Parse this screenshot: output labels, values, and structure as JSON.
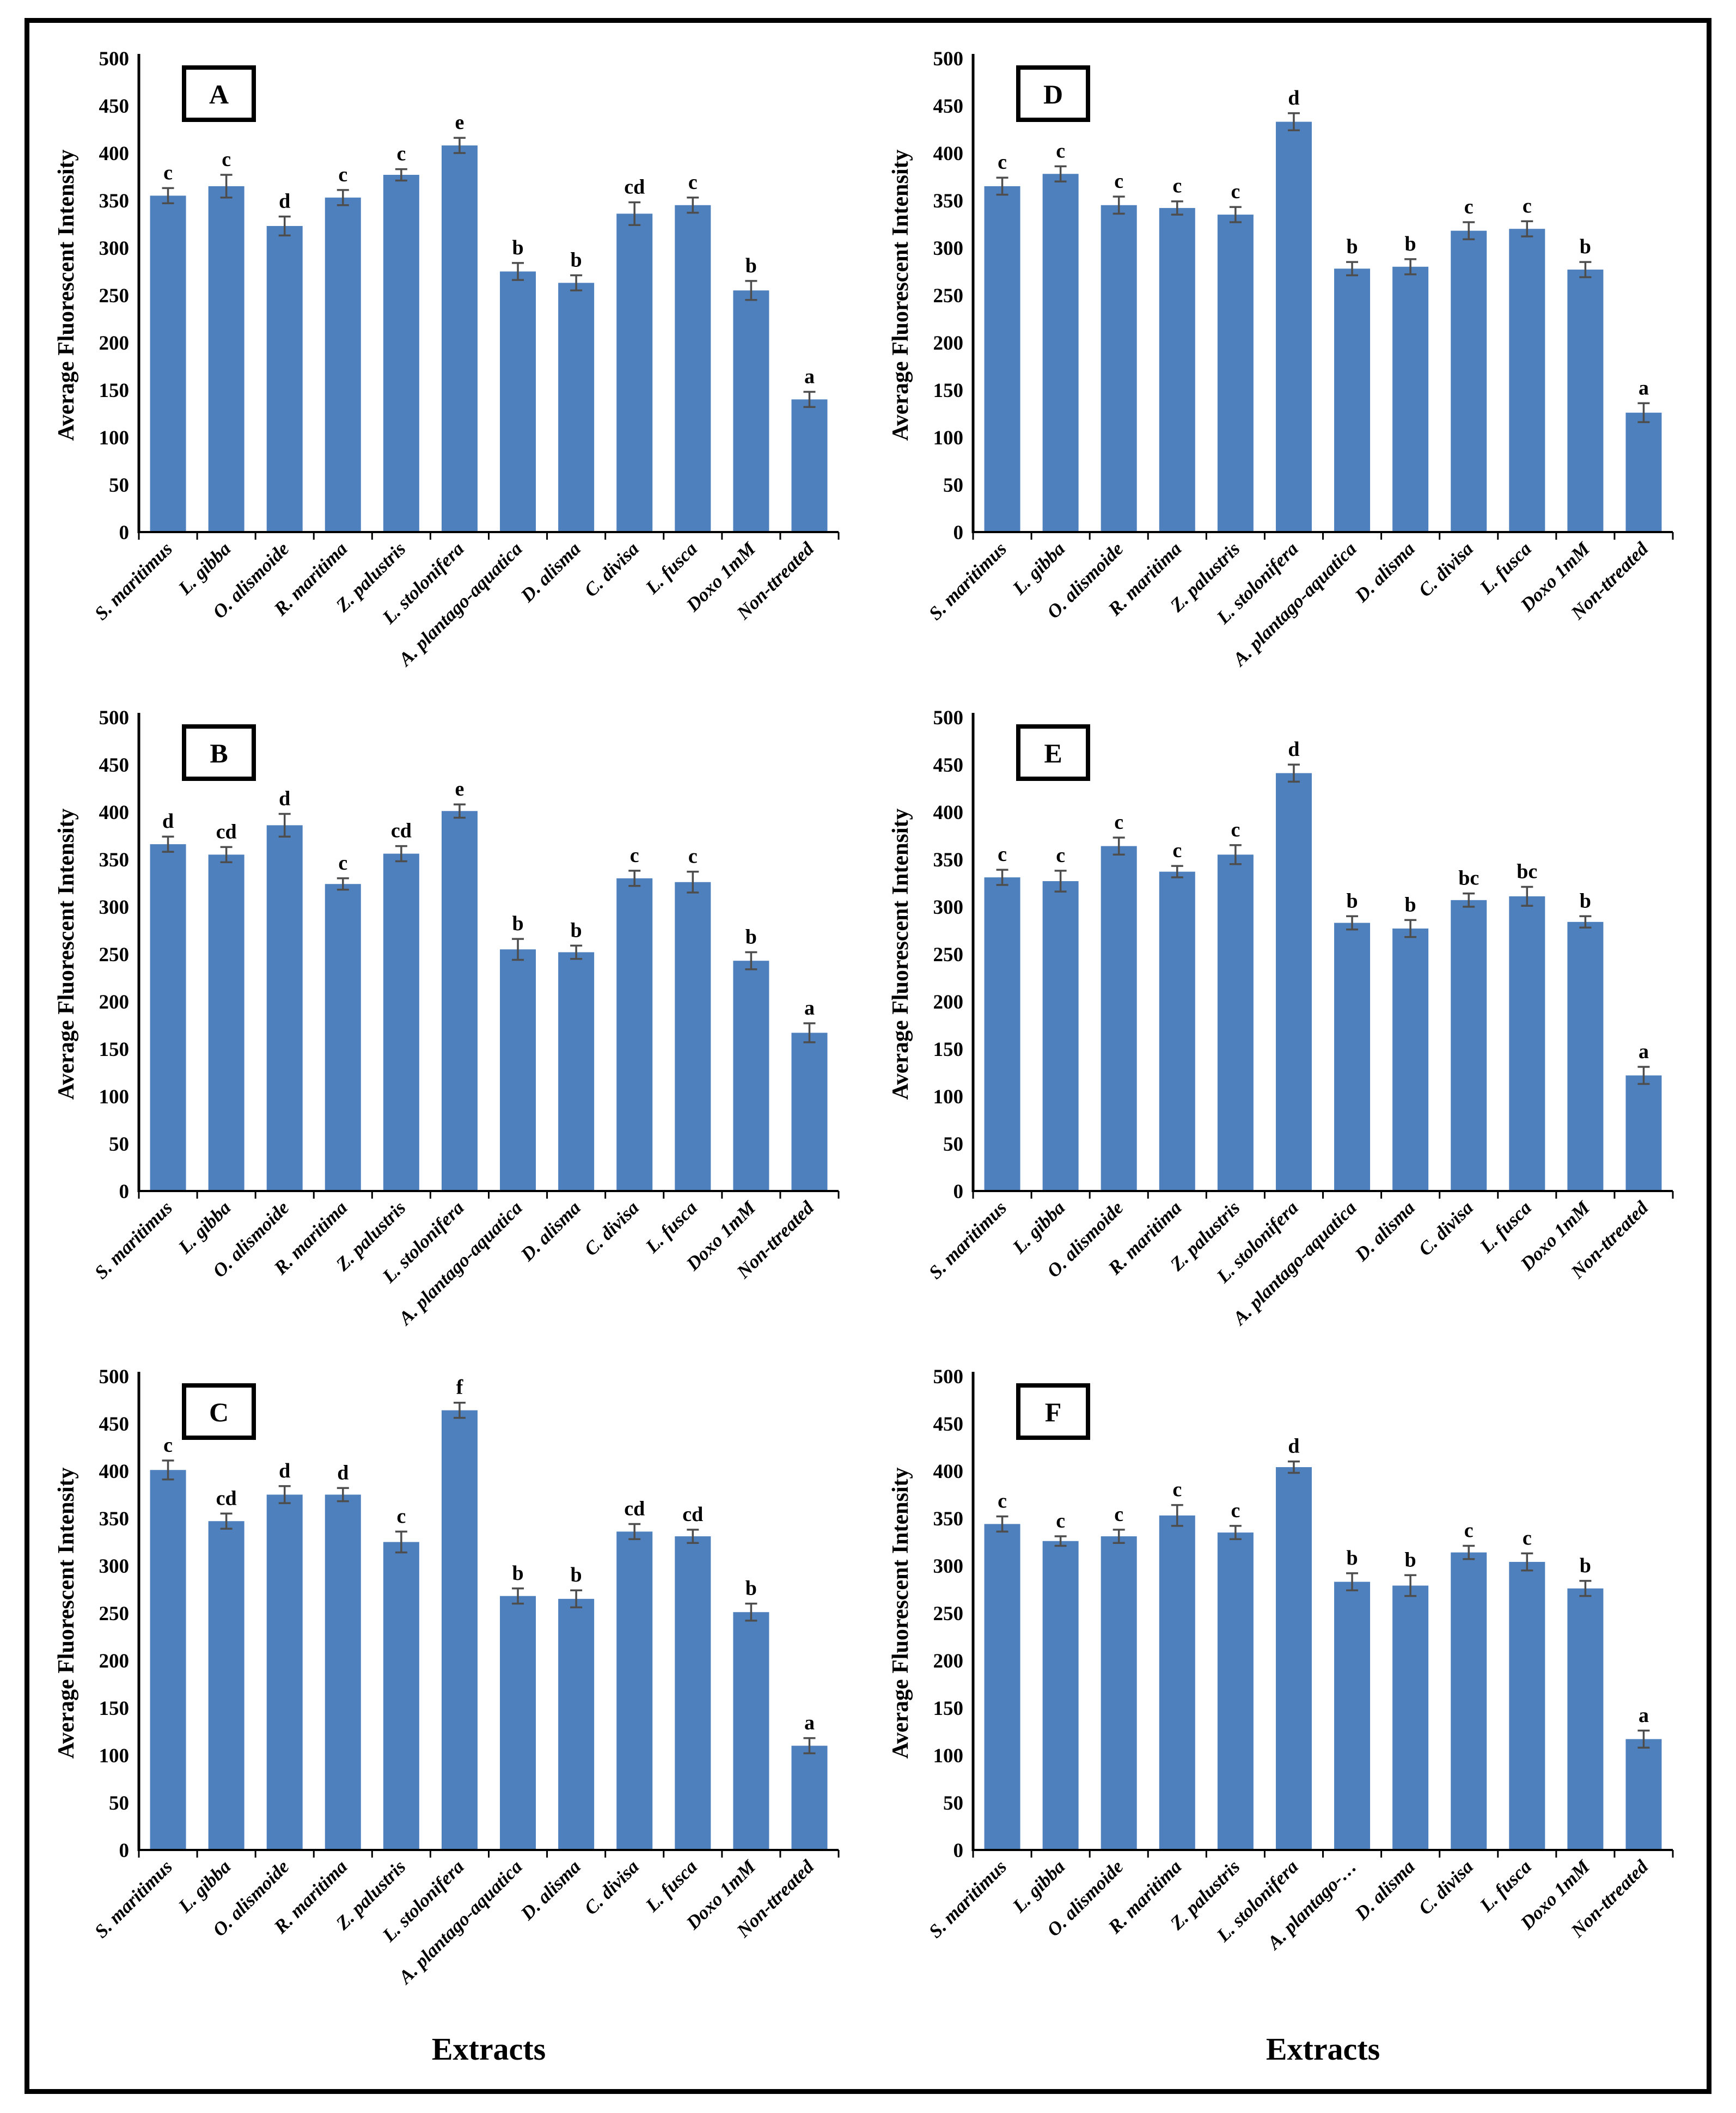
{
  "chart_data": {
    "type": "bar",
    "title": "",
    "ylabel": "Average Fluorescent Intensity",
    "xlabel": "Extracts",
    "ylim": [
      0,
      500
    ],
    "ytick_step": 50,
    "grid": "off",
    "legend": "none",
    "bar_color": "#4e80bd",
    "error_color": "#4d4d4d",
    "axis_color": "#000000",
    "categories": [
      "S. maritimus",
      "L. gibba",
      "O. alismoide",
      "R. maritima",
      "Z. palustris",
      "L. stolonifera",
      "A. plantago-aquatica",
      "D. alisma",
      "C. divisa",
      "L. fusca",
      "Doxo 1mM",
      "Non-ttreated"
    ],
    "grid_order": [
      "A",
      "D",
      "B",
      "E",
      "C",
      "F"
    ],
    "panels": [
      {
        "label": "A",
        "values": [
          355,
          365,
          323,
          353,
          377,
          408,
          275,
          263,
          336,
          345,
          255,
          140
        ],
        "errors": [
          8,
          12,
          10,
          8,
          6,
          8,
          9,
          8,
          12,
          8,
          10,
          8
        ],
        "sig_letters": [
          "c",
          "c",
          "d",
          "c",
          "c",
          "e",
          "b",
          "b",
          "cd",
          "c",
          "b",
          "a"
        ],
        "show_xlabel": false
      },
      {
        "label": "B",
        "values": [
          366,
          355,
          386,
          324,
          356,
          401,
          255,
          252,
          330,
          326,
          243,
          167
        ],
        "errors": [
          8,
          8,
          12,
          6,
          8,
          7,
          11,
          7,
          8,
          11,
          9,
          10
        ],
        "sig_letters": [
          "d",
          "cd",
          "d",
          "c",
          "cd",
          "e",
          "b",
          "b",
          "c",
          "c",
          "b",
          "a"
        ],
        "show_xlabel": false
      },
      {
        "label": "C",
        "values": [
          401,
          347,
          375,
          375,
          325,
          464,
          268,
          265,
          336,
          331,
          251,
          110
        ],
        "errors": [
          10,
          8,
          9,
          7,
          11,
          8,
          8,
          9,
          8,
          7,
          9,
          8
        ],
        "sig_letters": [
          "c",
          "cd",
          "d",
          "d",
          "c",
          "f",
          "b",
          "b",
          "cd",
          "cd",
          "b",
          "a"
        ],
        "show_xlabel": true
      },
      {
        "label": "D",
        "values": [
          365,
          378,
          345,
          342,
          335,
          433,
          278,
          280,
          318,
          320,
          277,
          126
        ],
        "errors": [
          9,
          8,
          9,
          7,
          8,
          9,
          7,
          8,
          9,
          8,
          8,
          10
        ],
        "sig_letters": [
          "c",
          "c",
          "c",
          "c",
          "c",
          "d",
          "b",
          "b",
          "c",
          "c",
          "b",
          "a"
        ],
        "show_xlabel": false
      },
      {
        "label": "E",
        "values": [
          331,
          327,
          364,
          337,
          355,
          441,
          283,
          277,
          307,
          311,
          284,
          122
        ],
        "errors": [
          8,
          11,
          9,
          6,
          10,
          9,
          7,
          9,
          7,
          10,
          6,
          9
        ],
        "sig_letters": [
          "c",
          "c",
          "c",
          "c",
          "c",
          "d",
          "b",
          "b",
          "bc",
          "bc",
          "b",
          "a"
        ],
        "show_xlabel": false
      },
      {
        "label": "F",
        "values": [
          344,
          326,
          331,
          353,
          335,
          404,
          283,
          279,
          314,
          304,
          276,
          117
        ],
        "errors": [
          8,
          5,
          7,
          11,
          7,
          6,
          9,
          11,
          7,
          9,
          8,
          9
        ],
        "sig_letters": [
          "c",
          "c",
          "c",
          "c",
          "c",
          "d",
          "b",
          "b",
          "c",
          "c",
          "b",
          "a"
        ],
        "category_overrides": {
          "6": "A. plantago-…"
        },
        "show_xlabel": true
      }
    ]
  }
}
